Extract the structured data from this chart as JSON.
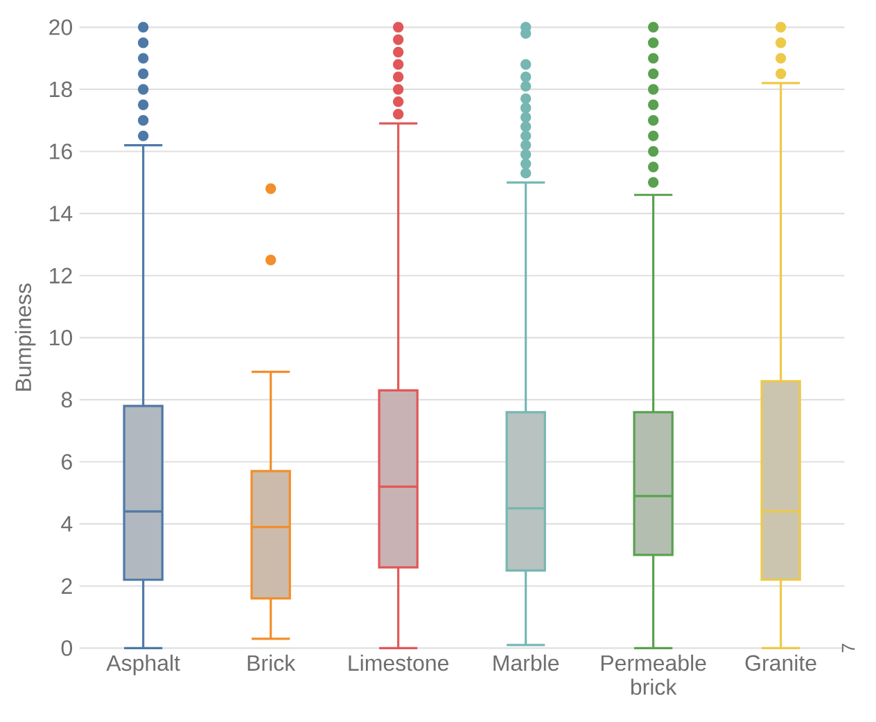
{
  "chart_data": {
    "type": "box",
    "ylabel": "Bumpiness",
    "categories": [
      "Asphalt",
      "Brick",
      "Limestone",
      "Marble",
      "Permeable brick",
      "Granite"
    ],
    "colors": [
      "#4e79a7",
      "#f28e2b",
      "#e15759",
      "#76b7b2",
      "#59a14f",
      "#edc948"
    ],
    "boxes": [
      {
        "low": 0,
        "q1": 2.2,
        "median": 4.4,
        "q3": 7.8,
        "high": 16.2,
        "outliers": [
          16.5,
          17,
          17.5,
          18,
          18.5,
          19,
          19.5,
          20
        ]
      },
      {
        "low": 0.3,
        "q1": 1.6,
        "median": 3.9,
        "q3": 5.7,
        "high": 8.9,
        "outliers": [
          12.5,
          14.8
        ]
      },
      {
        "low": 0,
        "q1": 2.6,
        "median": 5.2,
        "q3": 8.3,
        "high": 16.9,
        "outliers": [
          17.2,
          17.6,
          18,
          18.4,
          18.8,
          19.2,
          19.6,
          20
        ]
      },
      {
        "low": 0.1,
        "q1": 2.5,
        "median": 4.5,
        "q3": 7.6,
        "high": 15.0,
        "outliers": [
          15.3,
          15.6,
          15.9,
          16.2,
          16.5,
          16.8,
          17.1,
          17.4,
          17.7,
          18.1,
          18.4,
          18.8,
          19.8,
          20
        ]
      },
      {
        "low": 0,
        "q1": 3.0,
        "median": 4.9,
        "q3": 7.6,
        "high": 14.6,
        "outliers": [
          15,
          15.5,
          16,
          16.5,
          17,
          17.5,
          18,
          18.5,
          19,
          19.5,
          20
        ]
      },
      {
        "low": 0,
        "q1": 2.2,
        "median": 4.4,
        "q3": 8.6,
        "high": 18.2,
        "outliers": [
          18.5,
          19,
          19.5,
          20
        ]
      }
    ],
    "ylim": [
      0,
      20
    ],
    "yticks": [
      0,
      2,
      4,
      6,
      8,
      10,
      12,
      14,
      16,
      18,
      20
    ],
    "grid": "y",
    "marker": "circle",
    "annotations": [
      "7"
    ]
  }
}
